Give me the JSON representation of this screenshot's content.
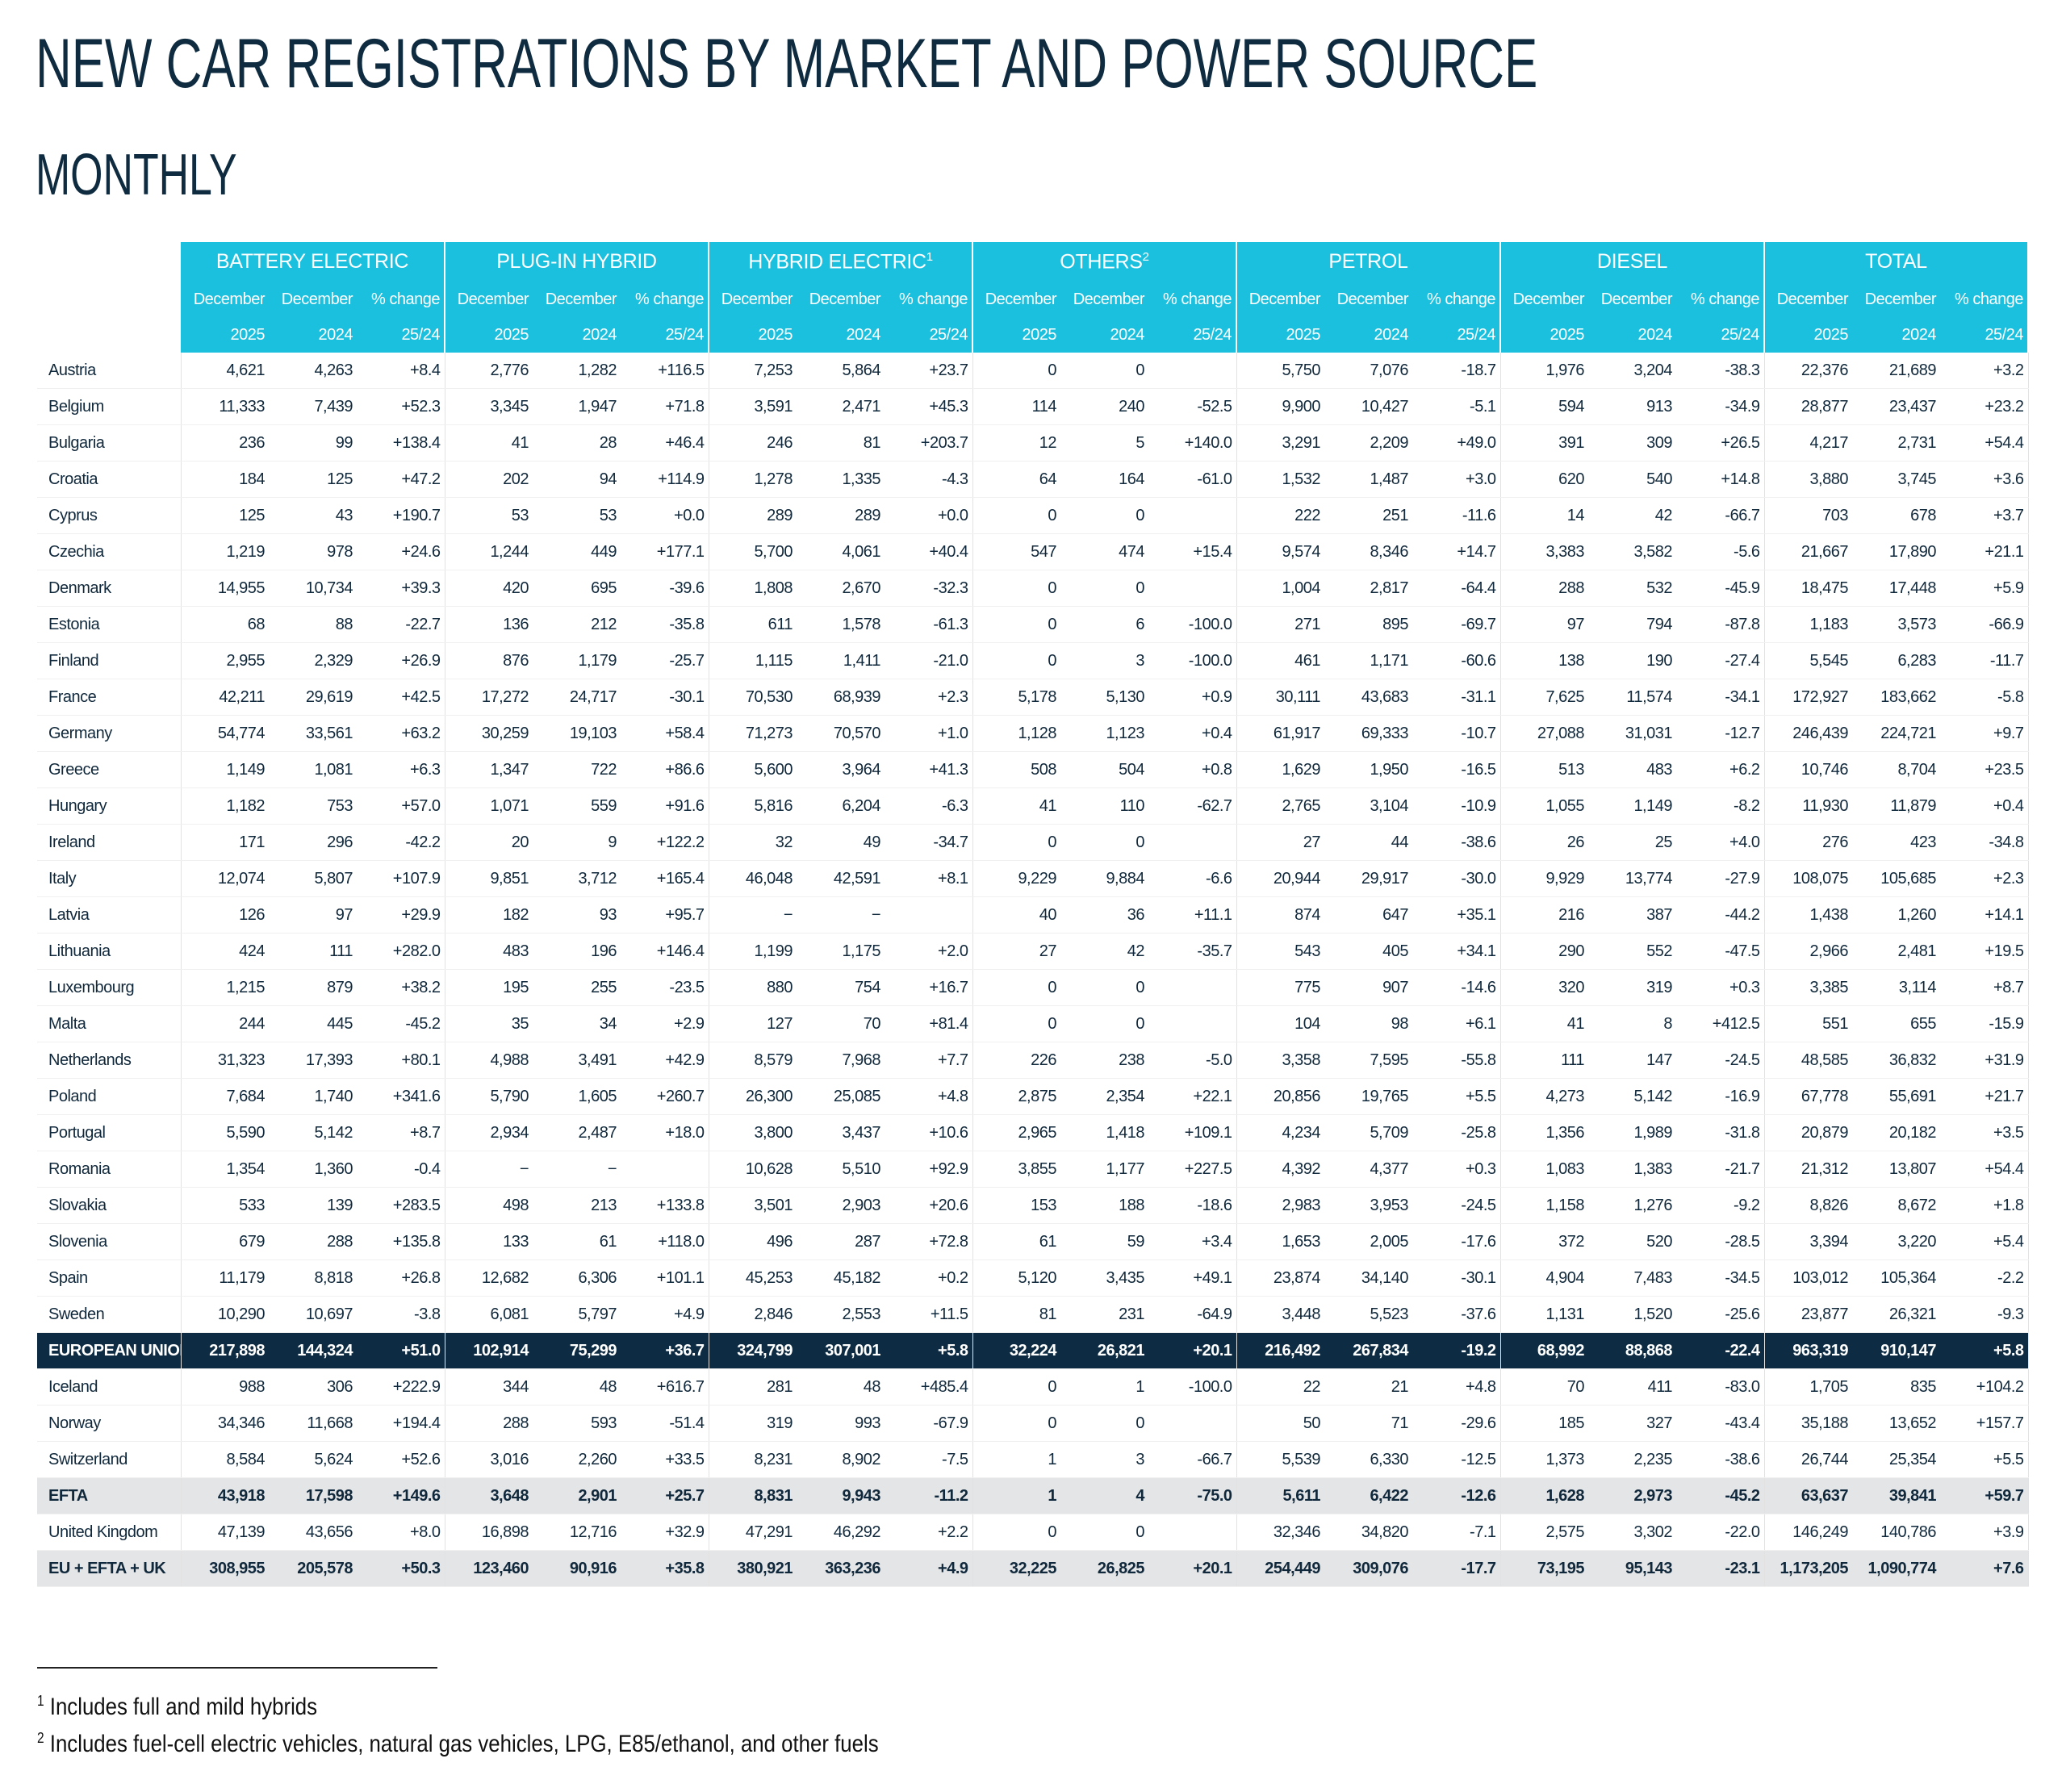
{
  "title": "NEW CAR REGISTRATIONS BY MARKET AND POWER SOURCE",
  "subtitle": "MONTHLY",
  "table": {
    "groups": [
      {
        "label": "BATTERY ELECTRIC"
      },
      {
        "label": "PLUG-IN HYBRID"
      },
      {
        "label": "HYBRID ELECTRIC",
        "note": "1"
      },
      {
        "label": "OTHERS",
        "note": "2"
      },
      {
        "label": "PETROL"
      },
      {
        "label": "DIESEL"
      },
      {
        "label": "TOTAL"
      }
    ],
    "column_headers": [
      [
        "December",
        "2025"
      ],
      [
        "December",
        "2024"
      ],
      [
        "% change",
        "25/24"
      ]
    ],
    "rows": [
      [
        "Austria",
        "4,621",
        "4,263",
        "+8.4",
        "2,776",
        "1,282",
        "+116.5",
        "7,253",
        "5,864",
        "+23.7",
        "0",
        "0",
        null,
        "5,750",
        "7,076",
        "-18.7",
        "1,976",
        "3,204",
        "-38.3",
        "22,376",
        "21,689",
        "+3.2"
      ],
      [
        "Belgium",
        "11,333",
        "7,439",
        "+52.3",
        "3,345",
        "1,947",
        "+71.8",
        "3,591",
        "2,471",
        "+45.3",
        "114",
        "240",
        "-52.5",
        "9,900",
        "10,427",
        "-5.1",
        "594",
        "913",
        "-34.9",
        "28,877",
        "23,437",
        "+23.2"
      ],
      [
        "Bulgaria",
        "236",
        "99",
        "+138.4",
        "41",
        "28",
        "+46.4",
        "246",
        "81",
        "+203.7",
        "12",
        "5",
        "+140.0",
        "3,291",
        "2,209",
        "+49.0",
        "391",
        "309",
        "+26.5",
        "4,217",
        "2,731",
        "+54.4"
      ],
      [
        "Croatia",
        "184",
        "125",
        "+47.2",
        "202",
        "94",
        "+114.9",
        "1,278",
        "1,335",
        "-4.3",
        "64",
        "164",
        "-61.0",
        "1,532",
        "1,487",
        "+3.0",
        "620",
        "540",
        "+14.8",
        "3,880",
        "3,745",
        "+3.6"
      ],
      [
        "Cyprus",
        "125",
        "43",
        "+190.7",
        "53",
        "53",
        "+0.0",
        "289",
        "289",
        "+0.0",
        "0",
        "0",
        null,
        "222",
        "251",
        "-11.6",
        "14",
        "42",
        "-66.7",
        "703",
        "678",
        "+3.7"
      ],
      [
        "Czechia",
        "1,219",
        "978",
        "+24.6",
        "1,244",
        "449",
        "+177.1",
        "5,700",
        "4,061",
        "+40.4",
        "547",
        "474",
        "+15.4",
        "9,574",
        "8,346",
        "+14.7",
        "3,383",
        "3,582",
        "-5.6",
        "21,667",
        "17,890",
        "+21.1"
      ],
      [
        "Denmark",
        "14,955",
        "10,734",
        "+39.3",
        "420",
        "695",
        "-39.6",
        "1,808",
        "2,670",
        "-32.3",
        "0",
        "0",
        null,
        "1,004",
        "2,817",
        "-64.4",
        "288",
        "532",
        "-45.9",
        "18,475",
        "17,448",
        "+5.9"
      ],
      [
        "Estonia",
        "68",
        "88",
        "-22.7",
        "136",
        "212",
        "-35.8",
        "611",
        "1,578",
        "-61.3",
        "0",
        "6",
        "-100.0",
        "271",
        "895",
        "-69.7",
        "97",
        "794",
        "-87.8",
        "1,183",
        "3,573",
        "-66.9"
      ],
      [
        "Finland",
        "2,955",
        "2,329",
        "+26.9",
        "876",
        "1,179",
        "-25.7",
        "1,115",
        "1,411",
        "-21.0",
        "0",
        "3",
        "-100.0",
        "461",
        "1,171",
        "-60.6",
        "138",
        "190",
        "-27.4",
        "5,545",
        "6,283",
        "-11.7"
      ],
      [
        "France",
        "42,211",
        "29,619",
        "+42.5",
        "17,272",
        "24,717",
        "-30.1",
        "70,530",
        "68,939",
        "+2.3",
        "5,178",
        "5,130",
        "+0.9",
        "30,111",
        "43,683",
        "-31.1",
        "7,625",
        "11,574",
        "-34.1",
        "172,927",
        "183,662",
        "-5.8"
      ],
      [
        "Germany",
        "54,774",
        "33,561",
        "+63.2",
        "30,259",
        "19,103",
        "+58.4",
        "71,273",
        "70,570",
        "+1.0",
        "1,128",
        "1,123",
        "+0.4",
        "61,917",
        "69,333",
        "-10.7",
        "27,088",
        "31,031",
        "-12.7",
        "246,439",
        "224,721",
        "+9.7"
      ],
      [
        "Greece",
        "1,149",
        "1,081",
        "+6.3",
        "1,347",
        "722",
        "+86.6",
        "5,600",
        "3,964",
        "+41.3",
        "508",
        "504",
        "+0.8",
        "1,629",
        "1,950",
        "-16.5",
        "513",
        "483",
        "+6.2",
        "10,746",
        "8,704",
        "+23.5"
      ],
      [
        "Hungary",
        "1,182",
        "753",
        "+57.0",
        "1,071",
        "559",
        "+91.6",
        "5,816",
        "6,204",
        "-6.3",
        "41",
        "110",
        "-62.7",
        "2,765",
        "3,104",
        "-10.9",
        "1,055",
        "1,149",
        "-8.2",
        "11,930",
        "11,879",
        "+0.4"
      ],
      [
        "Ireland",
        "171",
        "296",
        "-42.2",
        "20",
        "9",
        "+122.2",
        "32",
        "49",
        "-34.7",
        "0",
        "0",
        null,
        "27",
        "44",
        "-38.6",
        "26",
        "25",
        "+4.0",
        "276",
        "423",
        "-34.8"
      ],
      [
        "Italy",
        "12,074",
        "5,807",
        "+107.9",
        "9,851",
        "3,712",
        "+165.4",
        "46,048",
        "42,591",
        "+8.1",
        "9,229",
        "9,884",
        "-6.6",
        "20,944",
        "29,917",
        "-30.0",
        "9,929",
        "13,774",
        "-27.9",
        "108,075",
        "105,685",
        "+2.3"
      ],
      [
        "Latvia",
        "126",
        "97",
        "+29.9",
        "182",
        "93",
        "+95.7",
        "−",
        "−",
        null,
        "40",
        "36",
        "+11.1",
        "874",
        "647",
        "+35.1",
        "216",
        "387",
        "-44.2",
        "1,438",
        "1,260",
        "+14.1"
      ],
      [
        "Lithuania",
        "424",
        "111",
        "+282.0",
        "483",
        "196",
        "+146.4",
        "1,199",
        "1,175",
        "+2.0",
        "27",
        "42",
        "-35.7",
        "543",
        "405",
        "+34.1",
        "290",
        "552",
        "-47.5",
        "2,966",
        "2,481",
        "+19.5"
      ],
      [
        "Luxembourg",
        "1,215",
        "879",
        "+38.2",
        "195",
        "255",
        "-23.5",
        "880",
        "754",
        "+16.7",
        "0",
        "0",
        null,
        "775",
        "907",
        "-14.6",
        "320",
        "319",
        "+0.3",
        "3,385",
        "3,114",
        "+8.7"
      ],
      [
        "Malta",
        "244",
        "445",
        "-45.2",
        "35",
        "34",
        "+2.9",
        "127",
        "70",
        "+81.4",
        "0",
        "0",
        null,
        "104",
        "98",
        "+6.1",
        "41",
        "8",
        "+412.5",
        "551",
        "655",
        "-15.9"
      ],
      [
        "Netherlands",
        "31,323",
        "17,393",
        "+80.1",
        "4,988",
        "3,491",
        "+42.9",
        "8,579",
        "7,968",
        "+7.7",
        "226",
        "238",
        "-5.0",
        "3,358",
        "7,595",
        "-55.8",
        "111",
        "147",
        "-24.5",
        "48,585",
        "36,832",
        "+31.9"
      ],
      [
        "Poland",
        "7,684",
        "1,740",
        "+341.6",
        "5,790",
        "1,605",
        "+260.7",
        "26,300",
        "25,085",
        "+4.8",
        "2,875",
        "2,354",
        "+22.1",
        "20,856",
        "19,765",
        "+5.5",
        "4,273",
        "5,142",
        "-16.9",
        "67,778",
        "55,691",
        "+21.7"
      ],
      [
        "Portugal",
        "5,590",
        "5,142",
        "+8.7",
        "2,934",
        "2,487",
        "+18.0",
        "3,800",
        "3,437",
        "+10.6",
        "2,965",
        "1,418",
        "+109.1",
        "4,234",
        "5,709",
        "-25.8",
        "1,356",
        "1,989",
        "-31.8",
        "20,879",
        "20,182",
        "+3.5"
      ],
      [
        "Romania",
        "1,354",
        "1,360",
        "-0.4",
        "−",
        "−",
        null,
        "10,628",
        "5,510",
        "+92.9",
        "3,855",
        "1,177",
        "+227.5",
        "4,392",
        "4,377",
        "+0.3",
        "1,083",
        "1,383",
        "-21.7",
        "21,312",
        "13,807",
        "+54.4"
      ],
      [
        "Slovakia",
        "533",
        "139",
        "+283.5",
        "498",
        "213",
        "+133.8",
        "3,501",
        "2,903",
        "+20.6",
        "153",
        "188",
        "-18.6",
        "2,983",
        "3,953",
        "-24.5",
        "1,158",
        "1,276",
        "-9.2",
        "8,826",
        "8,672",
        "+1.8"
      ],
      [
        "Slovenia",
        "679",
        "288",
        "+135.8",
        "133",
        "61",
        "+118.0",
        "496",
        "287",
        "+72.8",
        "61",
        "59",
        "+3.4",
        "1,653",
        "2,005",
        "-17.6",
        "372",
        "520",
        "-28.5",
        "3,394",
        "3,220",
        "+5.4"
      ],
      [
        "Spain",
        "11,179",
        "8,818",
        "+26.8",
        "12,682",
        "6,306",
        "+101.1",
        "45,253",
        "45,182",
        "+0.2",
        "5,120",
        "3,435",
        "+49.1",
        "23,874",
        "34,140",
        "-30.1",
        "4,904",
        "7,483",
        "-34.5",
        "103,012",
        "105,364",
        "-2.2"
      ],
      [
        "Sweden",
        "10,290",
        "10,697",
        "-3.8",
        "6,081",
        "5,797",
        "+4.9",
        "2,846",
        "2,553",
        "+11.5",
        "81",
        "231",
        "-64.9",
        "3,448",
        "5,523",
        "-37.6",
        "1,131",
        "1,520",
        "-25.6",
        "23,877",
        "26,321",
        "-9.3"
      ],
      [
        "EUROPEAN UNION",
        "217,898",
        "144,324",
        "+51.0",
        "102,914",
        "75,299",
        "+36.7",
        "324,799",
        "307,001",
        "+5.8",
        "32,224",
        "26,821",
        "+20.1",
        "216,492",
        "267,834",
        "-19.2",
        "68,992",
        "88,868",
        "-22.4",
        "963,319",
        "910,147",
        "+5.8"
      ],
      [
        "Iceland",
        "988",
        "306",
        "+222.9",
        "344",
        "48",
        "+616.7",
        "281",
        "48",
        "+485.4",
        "0",
        "1",
        "-100.0",
        "22",
        "21",
        "+4.8",
        "70",
        "411",
        "-83.0",
        "1,705",
        "835",
        "+104.2"
      ],
      [
        "Norway",
        "34,346",
        "11,668",
        "+194.4",
        "288",
        "593",
        "-51.4",
        "319",
        "993",
        "-67.9",
        "0",
        "0",
        null,
        "50",
        "71",
        "-29.6",
        "185",
        "327",
        "-43.4",
        "35,188",
        "13,652",
        "+157.7"
      ],
      [
        "Switzerland",
        "8,584",
        "5,624",
        "+52.6",
        "3,016",
        "2,260",
        "+33.5",
        "8,231",
        "8,902",
        "-7.5",
        "1",
        "3",
        "-66.7",
        "5,539",
        "6,330",
        "-12.5",
        "1,373",
        "2,235",
        "-38.6",
        "26,744",
        "25,354",
        "+5.5"
      ],
      [
        "EFTA",
        "43,918",
        "17,598",
        "+149.6",
        "3,648",
        "2,901",
        "+25.7",
        "8,831",
        "9,943",
        "-11.2",
        "1",
        "4",
        "-75.0",
        "5,611",
        "6,422",
        "-12.6",
        "1,628",
        "2,973",
        "-45.2",
        "63,637",
        "39,841",
        "+59.7"
      ],
      [
        "United Kingdom",
        "47,139",
        "43,656",
        "+8.0",
        "16,898",
        "12,716",
        "+32.9",
        "47,291",
        "46,292",
        "+2.2",
        "0",
        "0",
        null,
        "32,346",
        "34,820",
        "-7.1",
        "2,575",
        "3,302",
        "-22.0",
        "146,249",
        "140,786",
        "+3.9"
      ],
      [
        "EU + EFTA + UK",
        "308,955",
        "205,578",
        "+50.3",
        "123,460",
        "90,916",
        "+35.8",
        "380,921",
        "363,236",
        "+4.9",
        "32,225",
        "26,825",
        "+20.1",
        "254,449",
        "309,076",
        "-17.7",
        "73,195",
        "95,143",
        "-23.1",
        "1,173,205",
        "1,090,774",
        "+7.6"
      ]
    ]
  },
  "footnotes": [
    {
      "mark": "1",
      "text": "Includes full and mild hybrids"
    },
    {
      "mark": "2",
      "text": "Includes fuel-cell electric vehicles, natural gas vehicles, LPG, E85/ethanol, and other fuels"
    }
  ]
}
